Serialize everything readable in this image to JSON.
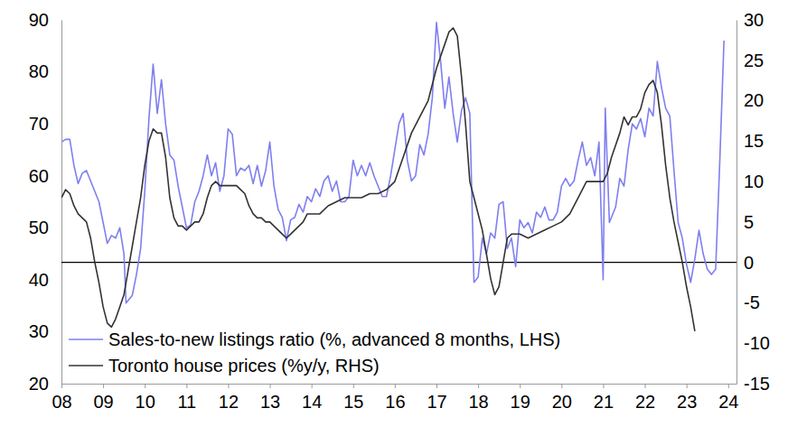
{
  "chart_data": {
    "type": "line",
    "legend": "lower left",
    "grid": false,
    "xlim": [
      2008,
      2024.2
    ],
    "xticks": [
      {
        "value": 2008,
        "label": "08"
      },
      {
        "value": 2009,
        "label": "09"
      },
      {
        "value": 2010,
        "label": "10"
      },
      {
        "value": 2011,
        "label": "11"
      },
      {
        "value": 2012,
        "label": "12"
      },
      {
        "value": 2013,
        "label": "13"
      },
      {
        "value": 2014,
        "label": "14"
      },
      {
        "value": 2015,
        "label": "15"
      },
      {
        "value": 2016,
        "label": "16"
      },
      {
        "value": 2017,
        "label": "17"
      },
      {
        "value": 2018,
        "label": "18"
      },
      {
        "value": 2019,
        "label": "19"
      },
      {
        "value": 2020,
        "label": "20"
      },
      {
        "value": 2021,
        "label": "21"
      },
      {
        "value": 2022,
        "label": "22"
      },
      {
        "value": 2023,
        "label": "23"
      },
      {
        "value": 2024,
        "label": "24"
      }
    ],
    "ylim": [
      20,
      90
    ],
    "yticks": [
      20,
      30,
      40,
      50,
      60,
      70,
      80,
      90
    ],
    "y2lim": [
      -15,
      30
    ],
    "y2ticks": [
      -15,
      -10,
      -5,
      0,
      5,
      10,
      15,
      20,
      25,
      30
    ],
    "series": [
      {
        "name": "Sales-to-new listings ratio (%, advanced 8 months, LHS)",
        "color": "#7f7ff0",
        "axis": "y",
        "x": [
          2008.0,
          2008.1,
          2008.2,
          2008.3,
          2008.4,
          2008.5,
          2008.6,
          2008.7,
          2008.8,
          2008.9,
          2009.0,
          2009.1,
          2009.2,
          2009.3,
          2009.4,
          2009.5,
          2009.55,
          2009.7,
          2009.8,
          2009.9,
          2010.0,
          2010.1,
          2010.2,
          2010.3,
          2010.4,
          2010.5,
          2010.6,
          2010.7,
          2010.8,
          2010.9,
          2011.0,
          2011.1,
          2011.2,
          2011.3,
          2011.4,
          2011.5,
          2011.6,
          2011.7,
          2011.8,
          2011.9,
          2012.0,
          2012.1,
          2012.2,
          2012.3,
          2012.4,
          2012.5,
          2012.6,
          2012.7,
          2012.8,
          2012.9,
          2013.0,
          2013.1,
          2013.2,
          2013.3,
          2013.4,
          2013.5,
          2013.6,
          2013.7,
          2013.8,
          2013.9,
          2014.0,
          2014.1,
          2014.2,
          2014.3,
          2014.4,
          2014.5,
          2014.6,
          2014.7,
          2014.8,
          2014.9,
          2015.0,
          2015.1,
          2015.2,
          2015.3,
          2015.4,
          2015.5,
          2015.6,
          2015.7,
          2015.8,
          2015.9,
          2016.0,
          2016.1,
          2016.2,
          2016.3,
          2016.4,
          2016.5,
          2016.6,
          2016.7,
          2016.8,
          2016.9,
          2017.0,
          2017.1,
          2017.2,
          2017.3,
          2017.4,
          2017.5,
          2017.6,
          2017.7,
          2017.8,
          2017.9,
          2018.0,
          2018.1,
          2018.2,
          2018.3,
          2018.4,
          2018.5,
          2018.6,
          2018.7,
          2018.8,
          2018.9,
          2019.0,
          2019.1,
          2019.2,
          2019.3,
          2019.4,
          2019.5,
          2019.6,
          2019.7,
          2019.8,
          2019.9,
          2020.0,
          2020.1,
          2020.2,
          2020.3,
          2020.4,
          2020.5,
          2020.6,
          2020.7,
          2020.8,
          2020.9,
          2021.0,
          2021.05,
          2021.15,
          2021.3,
          2021.4,
          2021.5,
          2021.6,
          2021.7,
          2021.8,
          2021.9,
          2022.0,
          2022.1,
          2022.2,
          2022.3,
          2022.4,
          2022.5,
          2022.6,
          2022.7,
          2022.8,
          2022.9,
          2023.0,
          2023.1,
          2023.2,
          2023.3,
          2023.4,
          2023.5,
          2023.6,
          2023.7,
          2023.8,
          2023.9
        ],
        "values": [
          66.5,
          67,
          67,
          62,
          58.5,
          60.5,
          61,
          59,
          57,
          55,
          51,
          47,
          48.5,
          48,
          50,
          45,
          35.5,
          37,
          41,
          46,
          57,
          71,
          81.5,
          72,
          78.5,
          70,
          64,
          63,
          58,
          54,
          50,
          50.5,
          55,
          57,
          60,
          64,
          60,
          62.5,
          57,
          60,
          69,
          68,
          60,
          61.5,
          61,
          62,
          58.5,
          62,
          58,
          61,
          66.5,
          58,
          53.5,
          52,
          47.5,
          51.5,
          52,
          54.5,
          53,
          56,
          55,
          57.5,
          56,
          59,
          60,
          57,
          59,
          55,
          55,
          56,
          63,
          60,
          62,
          60,
          62.5,
          60,
          58,
          56,
          56,
          60,
          65,
          70,
          72,
          63,
          59,
          60,
          66,
          64,
          68,
          75,
          89.5,
          82,
          73,
          79,
          72,
          66.5,
          72.5,
          75,
          72,
          39.5,
          40.5,
          48,
          45,
          49,
          48,
          54.5,
          55,
          46,
          48,
          42.5,
          51.5,
          50,
          51,
          49,
          53,
          52,
          54,
          51.5,
          51.5,
          53,
          58,
          59.5,
          58,
          59,
          63,
          66.5,
          62,
          63.5,
          60,
          66.5,
          40,
          73,
          51,
          54,
          59.5,
          58,
          65,
          70,
          69,
          71,
          67.5,
          73,
          71.5,
          82,
          77,
          73,
          71.5,
          61,
          51,
          48,
          43,
          39.5,
          44,
          49.5,
          45,
          42,
          41,
          42,
          63,
          86
        ]
      },
      {
        "name": "Toronto house prices (%y/y, RHS)",
        "color": "#333333",
        "axis": "y2",
        "x": [
          2008.0,
          2008.1,
          2008.2,
          2008.3,
          2008.4,
          2008.5,
          2008.6,
          2008.7,
          2008.8,
          2008.9,
          2009.0,
          2009.1,
          2009.2,
          2009.3,
          2009.4,
          2009.5,
          2009.6,
          2009.7,
          2009.8,
          2009.9,
          2010.0,
          2010.1,
          2010.2,
          2010.3,
          2010.4,
          2010.5,
          2010.6,
          2010.7,
          2010.8,
          2010.9,
          2011.0,
          2011.1,
          2011.2,
          2011.3,
          2011.4,
          2011.5,
          2011.6,
          2011.7,
          2011.8,
          2011.9,
          2012.0,
          2012.1,
          2012.2,
          2012.3,
          2012.4,
          2012.5,
          2012.6,
          2012.7,
          2012.8,
          2012.9,
          2013.0,
          2013.1,
          2013.2,
          2013.3,
          2013.4,
          2013.5,
          2013.6,
          2013.7,
          2013.8,
          2013.9,
          2014.0,
          2014.2,
          2014.4,
          2014.6,
          2014.8,
          2015.0,
          2015.2,
          2015.4,
          2015.6,
          2015.8,
          2016.0,
          2016.2,
          2016.4,
          2016.6,
          2016.8,
          2017.0,
          2017.2,
          2017.3,
          2017.4,
          2017.5,
          2017.6,
          2017.7,
          2017.8,
          2017.9,
          2018.0,
          2018.1,
          2018.2,
          2018.3,
          2018.4,
          2018.5,
          2018.6,
          2018.7,
          2018.8,
          2018.9,
          2019.0,
          2019.2,
          2019.4,
          2019.6,
          2019.8,
          2020.0,
          2020.2,
          2020.4,
          2020.6,
          2020.8,
          2021.0,
          2021.1,
          2021.2,
          2021.4,
          2021.5,
          2021.6,
          2021.7,
          2021.8,
          2021.9,
          2022.0,
          2022.1,
          2022.2,
          2022.3,
          2022.4,
          2022.5,
          2022.6,
          2022.7,
          2022.8,
          2022.9,
          2023.0,
          2023.1,
          2023.2
        ],
        "values": [
          8,
          9,
          8.5,
          7,
          6,
          5.5,
          5,
          3,
          0,
          -2.5,
          -5.5,
          -7.5,
          -8,
          -7,
          -5.5,
          -4,
          -1,
          2,
          5,
          8,
          12,
          15,
          16.5,
          16,
          16,
          13,
          8,
          5.5,
          4.5,
          4.5,
          4,
          4.5,
          5,
          5,
          6,
          8,
          9.5,
          10,
          9.5,
          9.5,
          9.5,
          9.5,
          9.5,
          9,
          8.5,
          7,
          6,
          5.5,
          5.5,
          5,
          5,
          4.5,
          4,
          3.5,
          3,
          3.5,
          4,
          4.5,
          5,
          6,
          6,
          6,
          7,
          7.5,
          8,
          8,
          8,
          8.5,
          8.5,
          9,
          10,
          13,
          16,
          18,
          20,
          24,
          27,
          28.5,
          29,
          28,
          23,
          17,
          10,
          8,
          6,
          4,
          1,
          -2,
          -4,
          -3,
          0,
          3,
          3.5,
          3.5,
          3.5,
          3,
          3.5,
          4,
          4.5,
          5,
          6,
          8,
          10,
          10,
          10,
          11,
          13,
          16,
          18,
          17,
          18,
          18,
          19,
          21,
          22,
          22.5,
          21,
          17,
          12,
          8,
          5,
          2.5,
          0,
          -3,
          -5.5,
          -8.5
        ]
      }
    ]
  }
}
